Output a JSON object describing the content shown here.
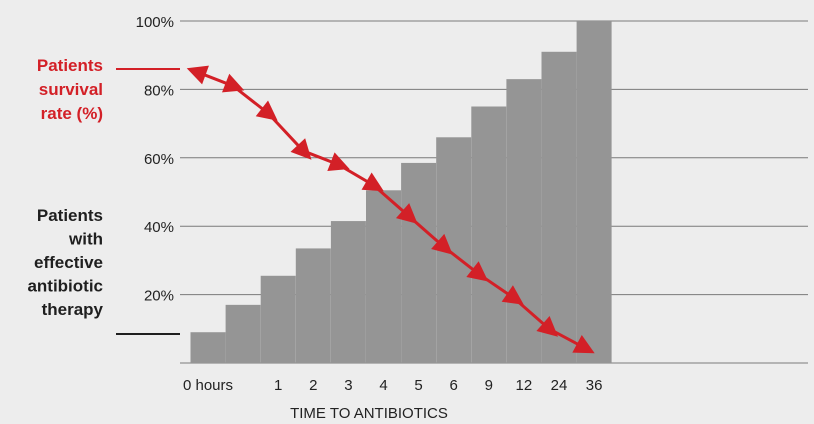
{
  "chart_data": {
    "type": "bar",
    "title": "",
    "xlabel": "TIME TO ANTIBIOTICS",
    "ylabel": "",
    "categories": [
      "0 hours",
      "",
      "1",
      "2",
      "3",
      "4",
      "5",
      "6",
      "9",
      "12",
      "24",
      "36"
    ],
    "ylim": [
      0,
      100
    ],
    "yticks": [
      20,
      40,
      60,
      80,
      100
    ],
    "ytick_labels": [
      "20%",
      "40%",
      "60%",
      "80%",
      "100%"
    ],
    "grid": true,
    "series": [
      {
        "name": "Patients with effective antibiotic therapy",
        "type": "bar",
        "color": "#959595",
        "values": [
          9,
          17,
          25.5,
          33.5,
          41.5,
          50.5,
          58.5,
          66,
          75,
          83,
          91,
          100
        ]
      },
      {
        "name": "Patients survival rate (%)",
        "type": "line",
        "marker": "triangle",
        "color": "#d32027",
        "values": [
          85,
          81,
          73,
          62,
          58,
          52,
          43,
          34,
          26,
          19,
          10,
          4.5
        ]
      }
    ],
    "legend": {
      "placement": "left",
      "survival_lines": [
        "Patients",
        "survival",
        "rate (%)"
      ],
      "effective_lines": [
        "Patients",
        "with",
        "effective",
        "antibiotic",
        "therapy"
      ]
    }
  }
}
